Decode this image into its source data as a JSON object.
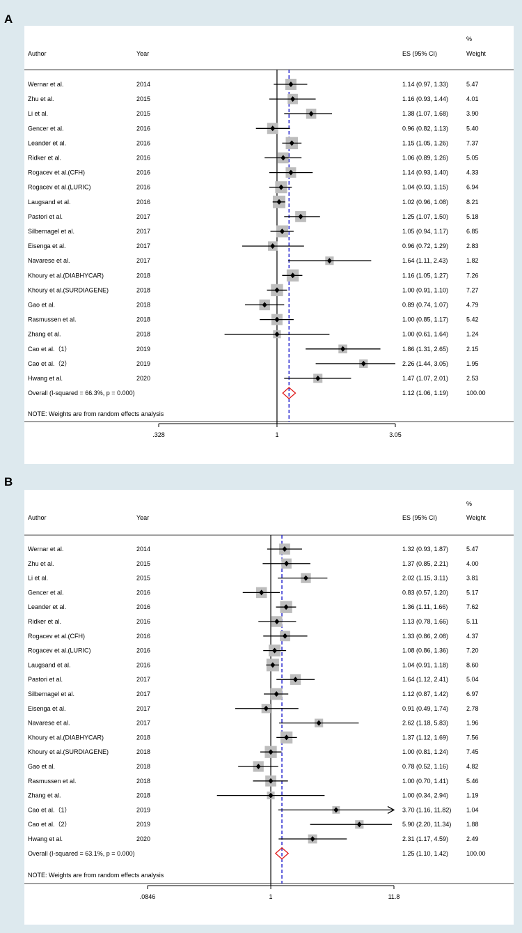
{
  "chart_data": [
    {
      "type": "forest",
      "panel": "A",
      "headers": {
        "author": "Author",
        "year": "Year",
        "es": "ES (95% CI)",
        "weight_pct": "%",
        "weight": "Weight"
      },
      "studies": [
        {
          "author": "Wernar et al.",
          "year": "2014",
          "es": 1.14,
          "lo": 0.97,
          "hi": 1.33,
          "ci_text": "1.14 (0.97, 1.33)",
          "weight": "5.47"
        },
        {
          "author": "Zhu et al.",
          "year": "2015",
          "es": 1.16,
          "lo": 0.93,
          "hi": 1.44,
          "ci_text": "1.16 (0.93, 1.44)",
          "weight": "4.01"
        },
        {
          "author": "Li et al.",
          "year": "2015",
          "es": 1.38,
          "lo": 1.07,
          "hi": 1.68,
          "ci_text": "1.38 (1.07, 1.68)",
          "weight": "3.90"
        },
        {
          "author": "Gencer et al.",
          "year": "2016",
          "es": 0.96,
          "lo": 0.82,
          "hi": 1.13,
          "ci_text": "0.96 (0.82, 1.13)",
          "weight": "5.40"
        },
        {
          "author": "Leander et al.",
          "year": "2016",
          "es": 1.15,
          "lo": 1.05,
          "hi": 1.26,
          "ci_text": "1.15 (1.05, 1.26)",
          "weight": "7.37"
        },
        {
          "author": "Ridker et al.",
          "year": "2016",
          "es": 1.06,
          "lo": 0.89,
          "hi": 1.26,
          "ci_text": "1.06 (0.89, 1.26)",
          "weight": "5.05"
        },
        {
          "author": "Rogacev et al.(CFH)",
          "year": "2016",
          "es": 1.14,
          "lo": 0.93,
          "hi": 1.4,
          "ci_text": "1.14 (0.93, 1.40)",
          "weight": "4.33"
        },
        {
          "author": "Rogacev et al.(LURIC)",
          "year": "2016",
          "es": 1.04,
          "lo": 0.93,
          "hi": 1.15,
          "ci_text": "1.04 (0.93, 1.15)",
          "weight": "6.94"
        },
        {
          "author": "Laugsand et al.",
          "year": "2016",
          "es": 1.02,
          "lo": 0.96,
          "hi": 1.08,
          "ci_text": "1.02 (0.96, 1.08)",
          "weight": "8.21"
        },
        {
          "author": "Pastori et al.",
          "year": "2017",
          "es": 1.25,
          "lo": 1.07,
          "hi": 1.5,
          "ci_text": "1.25 (1.07, 1.50)",
          "weight": "5.18"
        },
        {
          "author": "Silbernagel et al.",
          "year": "2017",
          "es": 1.05,
          "lo": 0.94,
          "hi": 1.17,
          "ci_text": "1.05 (0.94, 1.17)",
          "weight": "6.85"
        },
        {
          "author": "Eisenga et al.",
          "year": "2017",
          "es": 0.96,
          "lo": 0.72,
          "hi": 1.29,
          "ci_text": "0.96 (0.72, 1.29)",
          "weight": "2.83"
        },
        {
          "author": "Navarese et al.",
          "year": "2017",
          "es": 1.64,
          "lo": 1.11,
          "hi": 2.43,
          "ci_text": "1.64 (1.11, 2.43)",
          "weight": "1.82"
        },
        {
          "author": "Khoury et al.(DIABHYCAR)",
          "year": "2018",
          "es": 1.16,
          "lo": 1.05,
          "hi": 1.27,
          "ci_text": "1.16 (1.05, 1.27)",
          "weight": "7.26"
        },
        {
          "author": "Khoury et al.(SURDIAGENE)",
          "year": "2018",
          "es": 1.0,
          "lo": 0.91,
          "hi": 1.1,
          "ci_text": "1.00 (0.91, 1.10)",
          "weight": "7.27"
        },
        {
          "author": "Gao et al.",
          "year": "2018",
          "es": 0.89,
          "lo": 0.74,
          "hi": 1.07,
          "ci_text": "0.89 (0.74, 1.07)",
          "weight": "4.79"
        },
        {
          "author": "Rasmussen et al.",
          "year": "2018",
          "es": 1.0,
          "lo": 0.85,
          "hi": 1.17,
          "ci_text": "1.00 (0.85, 1.17)",
          "weight": "5.42"
        },
        {
          "author": "Zhang et al.",
          "year": "2018",
          "es": 1.0,
          "lo": 0.61,
          "hi": 1.64,
          "ci_text": "1.00 (0.61, 1.64)",
          "weight": "1.24"
        },
        {
          "author": "Cao et al.（1）",
          "year": "2019",
          "es": 1.86,
          "lo": 1.31,
          "hi": 2.65,
          "ci_text": "1.86 (1.31, 2.65)",
          "weight": "2.15"
        },
        {
          "author": "Cao et al.（2）",
          "year": "2019",
          "es": 2.26,
          "lo": 1.44,
          "hi": 3.05,
          "ci_text": "2.26 (1.44, 3.05)",
          "weight": "1.95"
        },
        {
          "author": "Hwang et al.",
          "year": "2020",
          "es": 1.47,
          "lo": 1.07,
          "hi": 2.01,
          "ci_text": "1.47 (1.07, 2.01)",
          "weight": "2.53"
        }
      ],
      "overall": {
        "label": "Overall  (I-squared = 66.3%, p = 0.000)",
        "es": 1.12,
        "lo": 1.06,
        "hi": 1.19,
        "ci_text": "1.12 (1.06, 1.19)",
        "weight": "100.00"
      },
      "note": "NOTE: Weights are from random effects analysis",
      "axis": {
        "scale": "log",
        "min": 0.328,
        "max": 3.05,
        "ticks": [
          {
            "value": 0.328,
            "label": ".328"
          },
          {
            "value": 1,
            "label": "1"
          },
          {
            "value": 3.05,
            "label": "3.05"
          }
        ]
      }
    },
    {
      "type": "forest",
      "panel": "B",
      "headers": {
        "author": "Author",
        "year": "Year",
        "es": "ES (95% CI)",
        "weight_pct": "%",
        "weight": "Weight"
      },
      "studies": [
        {
          "author": "Wernar et al.",
          "year": "2014",
          "es": 1.32,
          "lo": 0.93,
          "hi": 1.87,
          "ci_text": "1.32 (0.93, 1.87)",
          "weight": "5.47"
        },
        {
          "author": "Zhu et al.",
          "year": "2015",
          "es": 1.37,
          "lo": 0.85,
          "hi": 2.21,
          "ci_text": "1.37 (0.85, 2.21)",
          "weight": "4.00"
        },
        {
          "author": "Li et al.",
          "year": "2015",
          "es": 2.02,
          "lo": 1.15,
          "hi": 3.11,
          "ci_text": "2.02 (1.15, 3.11)",
          "weight": "3.81"
        },
        {
          "author": "Gencer et al.",
          "year": "2016",
          "es": 0.83,
          "lo": 0.57,
          "hi": 1.2,
          "ci_text": "0.83 (0.57, 1.20)",
          "weight": "5.17"
        },
        {
          "author": "Leander et al.",
          "year": "2016",
          "es": 1.36,
          "lo": 1.11,
          "hi": 1.66,
          "ci_text": "1.36 (1.11, 1.66)",
          "weight": "7.62"
        },
        {
          "author": "Ridker et al.",
          "year": "2016",
          "es": 1.13,
          "lo": 0.78,
          "hi": 1.66,
          "ci_text": "1.13 (0.78, 1.66)",
          "weight": "5.11"
        },
        {
          "author": "Rogacev et al.(CFH)",
          "year": "2016",
          "es": 1.33,
          "lo": 0.86,
          "hi": 2.08,
          "ci_text": "1.33 (0.86, 2.08)",
          "weight": "4.37"
        },
        {
          "author": "Rogacev et al.(LURIC)",
          "year": "2016",
          "es": 1.08,
          "lo": 0.86,
          "hi": 1.36,
          "ci_text": "1.08 (0.86, 1.36)",
          "weight": "7.20"
        },
        {
          "author": "Laugsand et al.",
          "year": "2016",
          "es": 1.04,
          "lo": 0.91,
          "hi": 1.18,
          "ci_text": "1.04 (0.91, 1.18)",
          "weight": "8.60"
        },
        {
          "author": "Pastori et al.",
          "year": "2017",
          "es": 1.64,
          "lo": 1.12,
          "hi": 2.41,
          "ci_text": "1.64 (1.12, 2.41)",
          "weight": "5.04"
        },
        {
          "author": "Silbernagel et al.",
          "year": "2017",
          "es": 1.12,
          "lo": 0.87,
          "hi": 1.42,
          "ci_text": "1.12 (0.87, 1.42)",
          "weight": "6.97"
        },
        {
          "author": "Eisenga et al.",
          "year": "2017",
          "es": 0.91,
          "lo": 0.49,
          "hi": 1.74,
          "ci_text": "0.91 (0.49, 1.74)",
          "weight": "2.78"
        },
        {
          "author": "Navarese et al.",
          "year": "2017",
          "es": 2.62,
          "lo": 1.18,
          "hi": 5.83,
          "ci_text": "2.62 (1.18, 5.83)",
          "weight": "1.96"
        },
        {
          "author": "Khoury et al.(DIABHYCAR)",
          "year": "2018",
          "es": 1.37,
          "lo": 1.12,
          "hi": 1.69,
          "ci_text": "1.37 (1.12, 1.69)",
          "weight": "7.56"
        },
        {
          "author": "Khoury et al.(SURDIAGENE)",
          "year": "2018",
          "es": 1.0,
          "lo": 0.81,
          "hi": 1.24,
          "ci_text": "1.00 (0.81, 1.24)",
          "weight": "7.45"
        },
        {
          "author": "Gao et al.",
          "year": "2018",
          "es": 0.78,
          "lo": 0.52,
          "hi": 1.16,
          "ci_text": "0.78 (0.52, 1.16)",
          "weight": "4.82"
        },
        {
          "author": "Rasmussen et al.",
          "year": "2018",
          "es": 1.0,
          "lo": 0.7,
          "hi": 1.41,
          "ci_text": "1.00 (0.70, 1.41)",
          "weight": "5.46"
        },
        {
          "author": "Zhang et al.",
          "year": "2018",
          "es": 1.0,
          "lo": 0.34,
          "hi": 2.94,
          "ci_text": "1.00 (0.34, 2.94)",
          "weight": "1.19"
        },
        {
          "author": "Cao et al.（1）",
          "year": "2019",
          "es": 3.7,
          "lo": 1.16,
          "hi": 11.82,
          "ci_text": "3.70 (1.16, 11.82)",
          "weight": "1.04"
        },
        {
          "author": "Cao et al.（2）",
          "year": "2019",
          "es": 5.9,
          "lo": 2.2,
          "hi": 11.34,
          "ci_text": "5.90 (2.20, 11.34)",
          "weight": "1.88"
        },
        {
          "author": "Hwang et al.",
          "year": "2020",
          "es": 2.31,
          "lo": 1.17,
          "hi": 4.59,
          "ci_text": "2.31 (1.17, 4.59)",
          "weight": "2.49"
        }
      ],
      "overall": {
        "label": "Overall  (I-squared = 63.1%, p = 0.000)",
        "es": 1.25,
        "lo": 1.1,
        "hi": 1.42,
        "ci_text": "1.25 (1.10, 1.42)",
        "weight": "100.00"
      },
      "note": "NOTE: Weights are from random effects analysis",
      "axis": {
        "scale": "log",
        "min": 0.0846,
        "max": 11.8,
        "ticks": [
          {
            "value": 0.0846,
            "label": ".0846"
          },
          {
            "value": 1,
            "label": "1"
          },
          {
            "value": 11.8,
            "label": "11.8"
          }
        ]
      }
    }
  ],
  "colors": {
    "square": "#bdbdbd",
    "line": "#000000",
    "overall_line": "#1a1acc",
    "diamond": "#e01b1b",
    "background": "#dde9ee",
    "panel": "#ffffff"
  }
}
